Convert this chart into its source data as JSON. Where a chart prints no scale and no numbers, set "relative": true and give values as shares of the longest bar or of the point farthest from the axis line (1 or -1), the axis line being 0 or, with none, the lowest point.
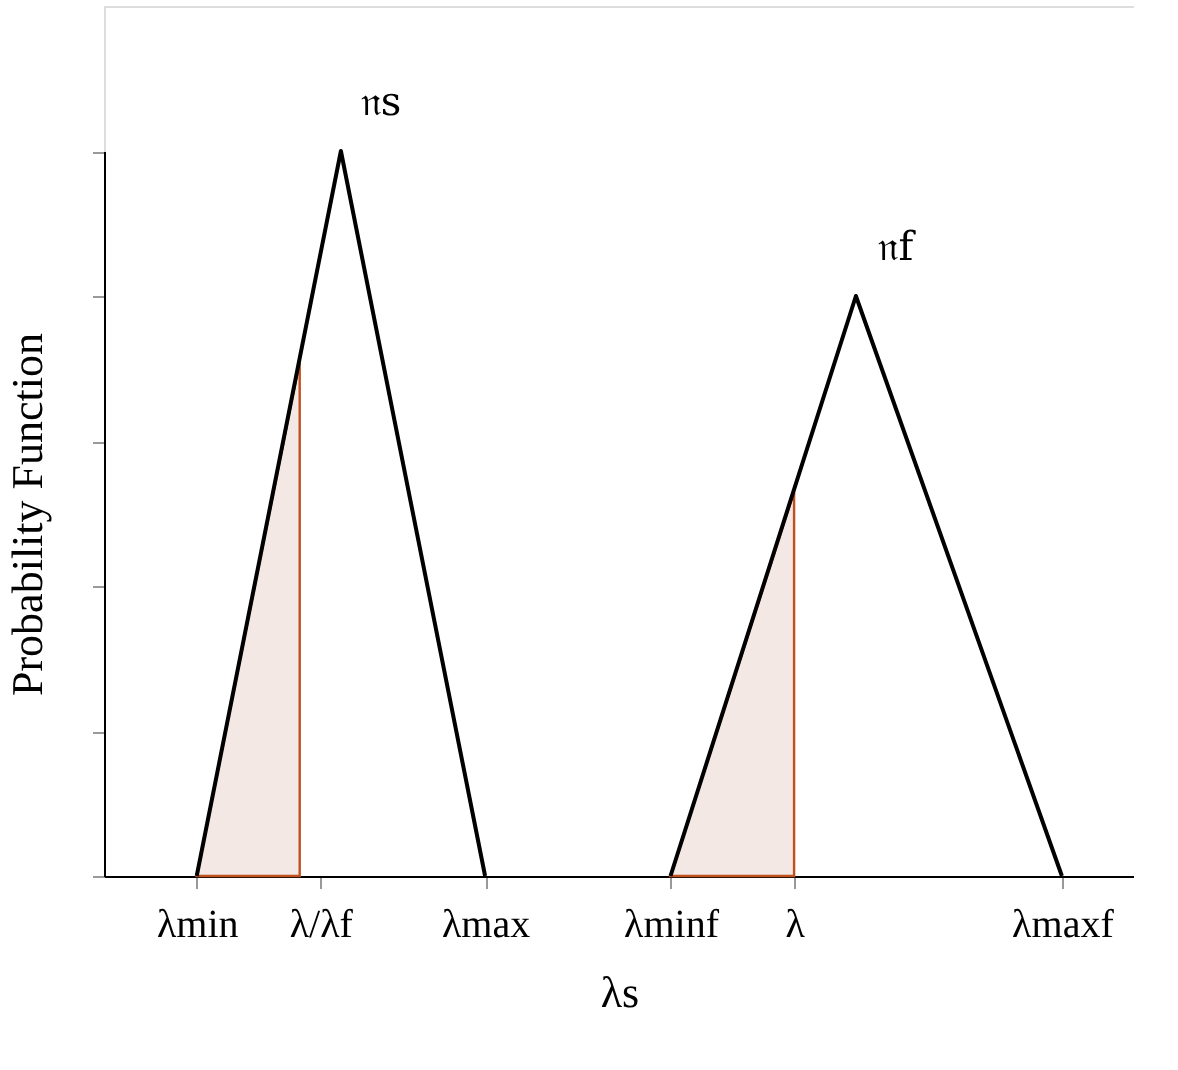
{
  "chart_data": {
    "type": "line",
    "relative": true,
    "xlabel": "λs",
    "ylabel": "Probability Function",
    "categories": [
      null,
      null,
      null,
      null,
      "λmin",
      null,
      null,
      null,
      null,
      null,
      "λ/λf",
      null,
      null,
      null,
      null,
      null,
      null,
      null,
      "λmax",
      null,
      null,
      null,
      null,
      null,
      null,
      null,
      null,
      "λminf",
      null,
      null,
      null,
      null,
      null,
      "λ",
      null,
      null,
      null,
      null,
      null,
      null,
      null,
      null,
      null,
      null,
      null,
      null,
      "λmaxf",
      null,
      null,
      null
    ],
    "series": [
      {
        "type": "area",
        "color": "#f3e8e3",
        "values": [
          null,
          null,
          null,
          null,
          0,
          null,
          null,
          null,
          null,
          0.71,
          null,
          null,
          null,
          null,
          null,
          null,
          null,
          null,
          null,
          null,
          null,
          null,
          null,
          null,
          null,
          null,
          null,
          null,
          null,
          null,
          null,
          null,
          null,
          null,
          null,
          null,
          null,
          null,
          null,
          null,
          null,
          null,
          null,
          null,
          null,
          null,
          null,
          null,
          null,
          null
        ]
      },
      {
        "type": "area",
        "color": "#f3e8e3",
        "values": [
          null,
          null,
          null,
          null,
          null,
          null,
          null,
          null,
          null,
          null,
          null,
          null,
          null,
          null,
          null,
          null,
          null,
          null,
          null,
          null,
          null,
          null,
          null,
          null,
          null,
          null,
          null,
          0,
          null,
          null,
          null,
          null,
          null,
          0.53,
          null,
          null,
          null,
          null,
          null,
          null,
          null,
          null,
          null,
          null,
          null,
          null,
          null,
          null,
          null,
          null
        ]
      },
      {
        "color": "#000000",
        "values": [
          null,
          null,
          null,
          null,
          0,
          null,
          null,
          null,
          null,
          null,
          null,
          1,
          null,
          null,
          null,
          null,
          null,
          null,
          0,
          null,
          null,
          null,
          null,
          null,
          null,
          null,
          null,
          null,
          null,
          null,
          null,
          null,
          null,
          null,
          null,
          null,
          null,
          null,
          null,
          null,
          null,
          null,
          null,
          null,
          null,
          null,
          null,
          null,
          null,
          null
        ]
      },
      {
        "color": "#000000",
        "values": [
          null,
          null,
          null,
          null,
          null,
          null,
          null,
          null,
          null,
          null,
          null,
          null,
          null,
          null,
          null,
          null,
          null,
          null,
          null,
          null,
          null,
          null,
          null,
          null,
          null,
          null,
          null,
          0,
          null,
          null,
          null,
          null,
          null,
          null,
          null,
          null,
          0.8,
          null,
          null,
          null,
          null,
          null,
          null,
          null,
          null,
          null,
          0,
          null,
          null,
          null
        ]
      }
    ],
    "annotations": [
      "𝔫s",
      "𝔫f"
    ],
    "marker": "none",
    "line_style": "solid"
  }
}
